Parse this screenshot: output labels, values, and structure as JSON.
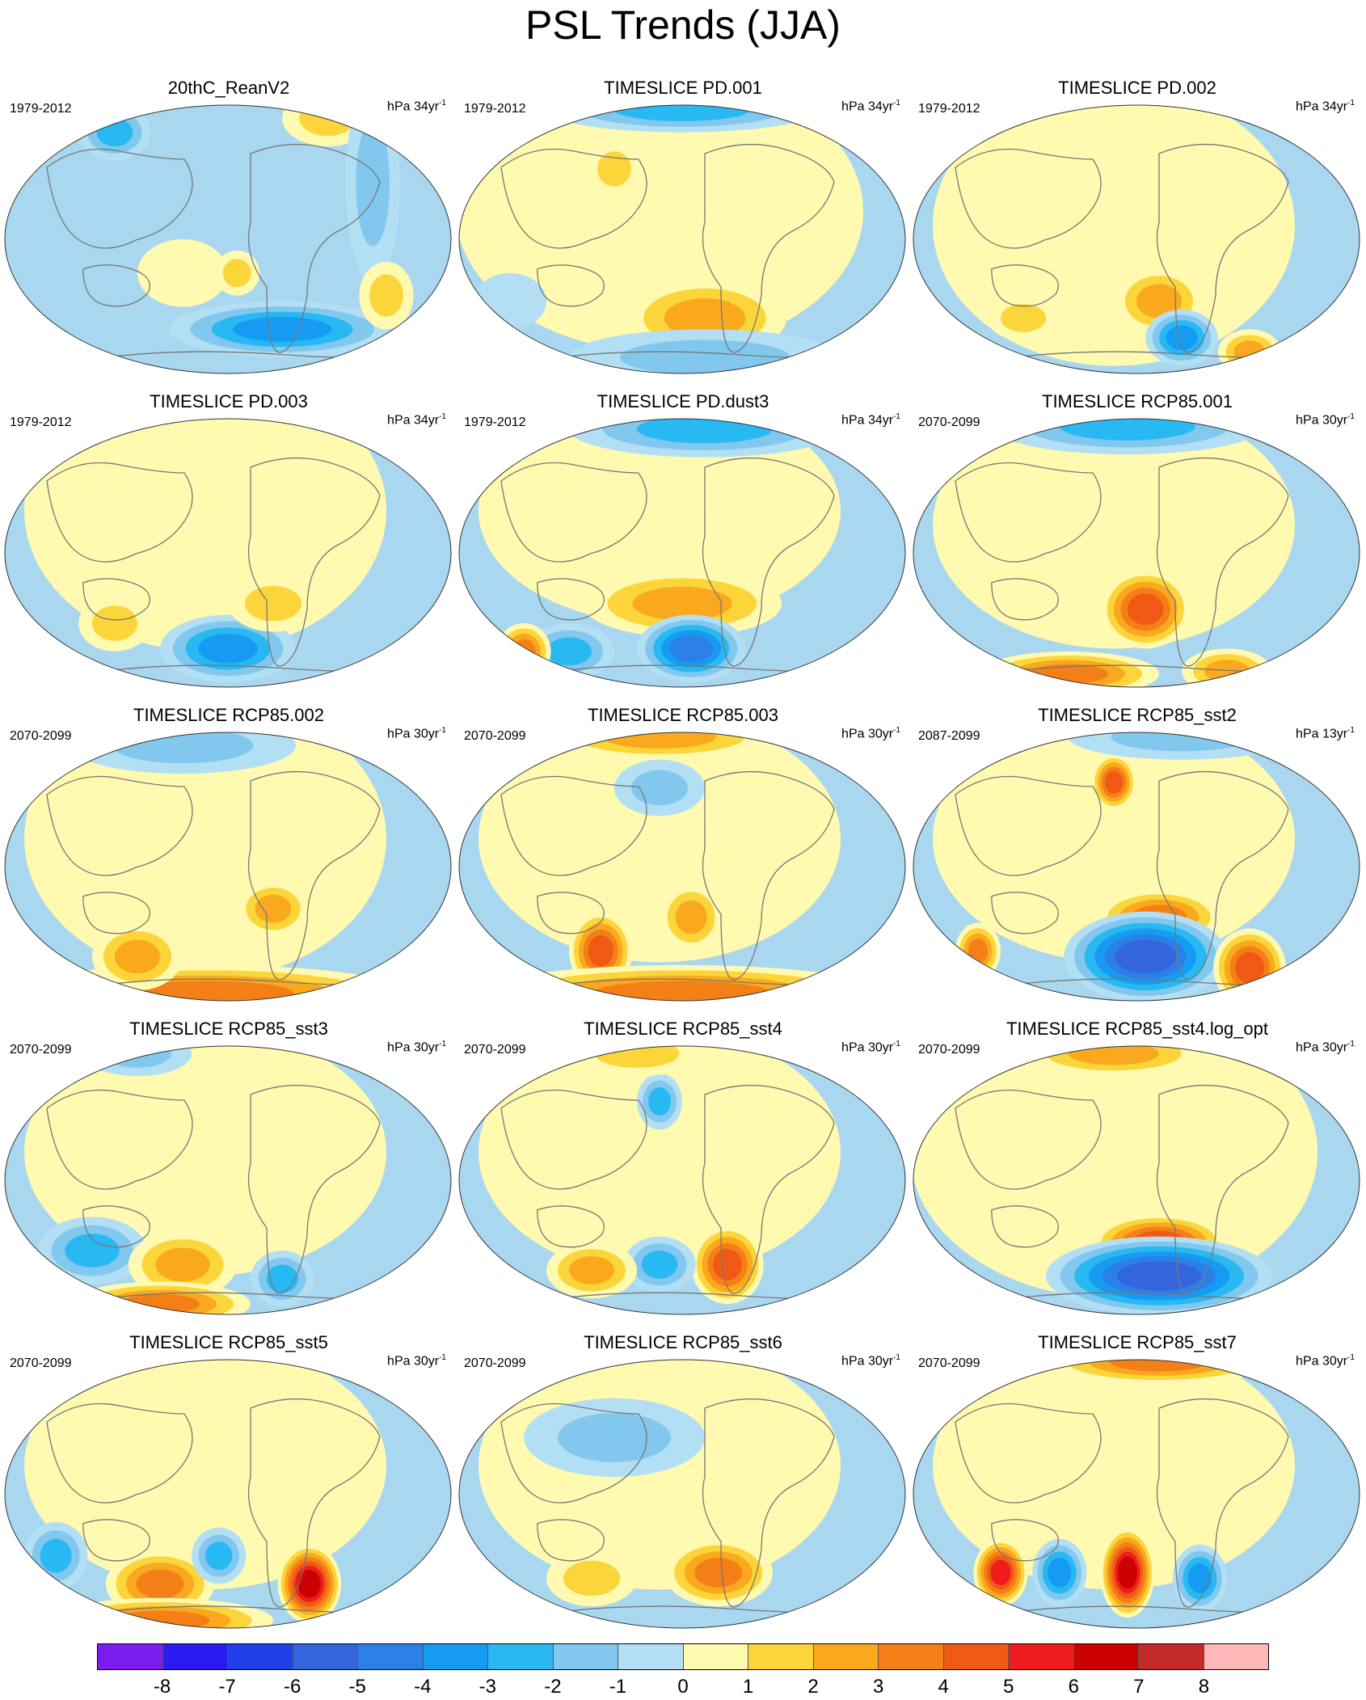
{
  "figure": {
    "title": "PSL Trends (JJA)",
    "units_prefix": "hPa ",
    "units_sup": "-1"
  },
  "palette": {
    "ocean_base": "#a9d7f0",
    "land_line": "#777777",
    "pos": [
      "#fffab0",
      "#fcd53a",
      "#faa81e",
      "#f57f17",
      "#f05a14",
      "#ee1c1c",
      "#cc0000",
      "#c52a2a",
      "#ffb6b6"
    ],
    "neg": [
      "#b3dff4",
      "#82c8ee",
      "#28b8f2",
      "#169bf2",
      "#2b80e8",
      "#3366dd",
      "#1f3fe8",
      "#2a1cf0",
      "#7a1ef0"
    ]
  },
  "panels": [
    {
      "title": "20thC_ReanV2",
      "period": "1979-2012",
      "units": "34yr",
      "pattern": [
        [
          "pos",
          1,
          0.4,
          0.62,
          0.1,
          0.06
        ],
        [
          "neg",
          4,
          0.62,
          0.82,
          0.25,
          0.05
        ],
        [
          "neg",
          3,
          0.25,
          0.12,
          0.08,
          0.05
        ],
        [
          "pos",
          2,
          0.72,
          0.07,
          0.1,
          0.05
        ],
        [
          "neg",
          2,
          0.82,
          0.3,
          0.06,
          0.18
        ],
        [
          "pos",
          2,
          0.85,
          0.7,
          0.06,
          0.06
        ],
        [
          "pos",
          2,
          0.52,
          0.62,
          0.05,
          0.04
        ]
      ]
    },
    {
      "title": "TIMESLICE PD.001",
      "period": "1979-2012",
      "units": "34yr",
      "pattern": [
        [
          "pos",
          1,
          0.45,
          0.4,
          0.45,
          0.25
        ],
        [
          "pos",
          3,
          0.55,
          0.78,
          0.18,
          0.07
        ],
        [
          "neg",
          3,
          0.5,
          0.04,
          0.3,
          0.04
        ],
        [
          "neg",
          2,
          0.55,
          0.92,
          0.3,
          0.05
        ],
        [
          "pos",
          2,
          0.35,
          0.25,
          0.06,
          0.05
        ],
        [
          "neg",
          1,
          0.12,
          0.72,
          0.08,
          0.05
        ]
      ]
    },
    {
      "title": "TIMESLICE PD.002",
      "period": "1979-2012",
      "units": "34yr",
      "pattern": [
        [
          "pos",
          1,
          0.45,
          0.45,
          0.4,
          0.25
        ],
        [
          "pos",
          3,
          0.55,
          0.72,
          0.1,
          0.06
        ],
        [
          "neg",
          4,
          0.6,
          0.85,
          0.08,
          0.05
        ],
        [
          "pos",
          3,
          0.75,
          0.9,
          0.07,
          0.04
        ],
        [
          "pos",
          2,
          0.25,
          0.78,
          0.08,
          0.04
        ]
      ]
    },
    {
      "title": "TIMESLICE PD.003",
      "period": "1979-2012",
      "units": "34yr",
      "pattern": [
        [
          "pos",
          1,
          0.45,
          0.35,
          0.4,
          0.25
        ],
        [
          "neg",
          4,
          0.5,
          0.84,
          0.15,
          0.06
        ],
        [
          "pos",
          2,
          0.6,
          0.68,
          0.1,
          0.05
        ],
        [
          "pos",
          2,
          0.25,
          0.75,
          0.08,
          0.05
        ],
        [
          "pos",
          1,
          0.2,
          0.2,
          0.15,
          0.08
        ]
      ]
    },
    {
      "title": "TIMESLICE PD.dust3",
      "period": "1979-2012",
      "units": "34yr",
      "pattern": [
        [
          "pos",
          1,
          0.45,
          0.35,
          0.4,
          0.2
        ],
        [
          "pos",
          3,
          0.5,
          0.68,
          0.22,
          0.06
        ],
        [
          "neg",
          5,
          0.52,
          0.84,
          0.12,
          0.06
        ],
        [
          "neg",
          3,
          0.25,
          0.85,
          0.1,
          0.05
        ],
        [
          "neg",
          3,
          0.55,
          0.06,
          0.3,
          0.05
        ],
        [
          "pos",
          4,
          0.15,
          0.85,
          0.06,
          0.05
        ]
      ]
    },
    {
      "title": "TIMESLICE RCP85.001",
      "period": "2070-2099",
      "units": "30yr",
      "pattern": [
        [
          "pos",
          1,
          0.45,
          0.4,
          0.4,
          0.22
        ],
        [
          "pos",
          5,
          0.52,
          0.7,
          0.1,
          0.07
        ],
        [
          "neg",
          3,
          0.48,
          0.05,
          0.3,
          0.05
        ],
        [
          "pos",
          4,
          0.35,
          0.93,
          0.2,
          0.04
        ],
        [
          "pos",
          3,
          0.7,
          0.92,
          0.1,
          0.04
        ]
      ]
    },
    {
      "title": "TIMESLICE RCP85.002",
      "period": "2070-2099",
      "units": "30yr",
      "pattern": [
        [
          "pos",
          1,
          0.45,
          0.4,
          0.4,
          0.25
        ],
        [
          "pos",
          3,
          0.6,
          0.65,
          0.08,
          0.05
        ],
        [
          "pos",
          4,
          0.45,
          0.95,
          0.45,
          0.05
        ],
        [
          "neg",
          2,
          0.4,
          0.07,
          0.25,
          0.05
        ],
        [
          "pos",
          3,
          0.3,
          0.82,
          0.1,
          0.06
        ]
      ]
    },
    {
      "title": "TIMESLICE RCP85.003",
      "period": "2070-2099",
      "units": "30yr",
      "pattern": [
        [
          "pos",
          1,
          0.45,
          0.4,
          0.4,
          0.22
        ],
        [
          "pos",
          5,
          0.32,
          0.8,
          0.07,
          0.07
        ],
        [
          "pos",
          3,
          0.52,
          0.68,
          0.07,
          0.06
        ],
        [
          "pos",
          4,
          0.5,
          0.95,
          0.45,
          0.05
        ],
        [
          "pos",
          3,
          0.45,
          0.04,
          0.25,
          0.04
        ],
        [
          "neg",
          2,
          0.45,
          0.22,
          0.1,
          0.05
        ]
      ]
    },
    {
      "title": "TIMESLICE RCP85_sst2",
      "period": "2087-2099",
      "units": "13yr",
      "pattern": [
        [
          "pos",
          1,
          0.45,
          0.4,
          0.4,
          0.22
        ],
        [
          "pos",
          5,
          0.45,
          0.2,
          0.05,
          0.05
        ],
        [
          "pos",
          4,
          0.55,
          0.68,
          0.14,
          0.05
        ],
        [
          "neg",
          6,
          0.52,
          0.82,
          0.18,
          0.08
        ],
        [
          "pos",
          5,
          0.75,
          0.86,
          0.08,
          0.07
        ],
        [
          "pos",
          4,
          0.15,
          0.8,
          0.05,
          0.05
        ],
        [
          "neg",
          2,
          0.6,
          0.04,
          0.25,
          0.04
        ]
      ]
    },
    {
      "title": "TIMESLICE RCP85_sst3",
      "period": "2070-2099",
      "units": "30yr",
      "pattern": [
        [
          "pos",
          1,
          0.45,
          0.4,
          0.4,
          0.22
        ],
        [
          "neg",
          3,
          0.2,
          0.75,
          0.12,
          0.06
        ],
        [
          "pos",
          3,
          0.4,
          0.8,
          0.12,
          0.06
        ],
        [
          "neg",
          3,
          0.62,
          0.85,
          0.07,
          0.05
        ],
        [
          "pos",
          4,
          0.35,
          0.94,
          0.2,
          0.04
        ],
        [
          "neg",
          2,
          0.3,
          0.05,
          0.12,
          0.04
        ]
      ]
    },
    {
      "title": "TIMESLICE RCP85_sst4",
      "period": "2070-2099",
      "units": "30yr",
      "pattern": [
        [
          "pos",
          1,
          0.45,
          0.4,
          0.4,
          0.22
        ],
        [
          "pos",
          5,
          0.6,
          0.8,
          0.08,
          0.07
        ],
        [
          "neg",
          3,
          0.45,
          0.8,
          0.08,
          0.05
        ],
        [
          "pos",
          3,
          0.3,
          0.82,
          0.1,
          0.05
        ],
        [
          "neg",
          3,
          0.45,
          0.22,
          0.05,
          0.05
        ],
        [
          "pos",
          2,
          0.4,
          0.05,
          0.15,
          0.04
        ]
      ]
    },
    {
      "title": "TIMESLICE RCP85_sst4.log_opt",
      "period": "2070-2099",
      "units": "30yr",
      "pattern": [
        [
          "pos",
          1,
          0.45,
          0.4,
          0.45,
          0.26
        ],
        [
          "pos",
          5,
          0.55,
          0.72,
          0.15,
          0.05
        ],
        [
          "neg",
          6,
          0.55,
          0.84,
          0.25,
          0.07
        ],
        [
          "pos",
          3,
          0.45,
          0.05,
          0.2,
          0.04
        ]
      ]
    },
    {
      "title": "TIMESLICE RCP85_sst5",
      "period": "2070-2099",
      "units": "30yr",
      "pattern": [
        [
          "pos",
          1,
          0.45,
          0.4,
          0.4,
          0.22
        ],
        [
          "pos",
          7,
          0.68,
          0.82,
          0.07,
          0.07
        ],
        [
          "pos",
          4,
          0.35,
          0.82,
          0.12,
          0.06
        ],
        [
          "pos",
          4,
          0.35,
          0.95,
          0.25,
          0.04
        ],
        [
          "neg",
          3,
          0.12,
          0.72,
          0.07,
          0.06
        ],
        [
          "neg",
          3,
          0.48,
          0.72,
          0.06,
          0.05
        ]
      ]
    },
    {
      "title": "TIMESLICE RCP85_sst6",
      "period": "2070-2099",
      "units": "30yr",
      "pattern": [
        [
          "pos",
          1,
          0.45,
          0.4,
          0.4,
          0.22
        ],
        [
          "pos",
          4,
          0.58,
          0.78,
          0.12,
          0.06
        ],
        [
          "pos",
          2,
          0.3,
          0.8,
          0.1,
          0.05
        ],
        [
          "neg",
          2,
          0.35,
          0.3,
          0.2,
          0.07
        ]
      ]
    },
    {
      "title": "TIMESLICE RCP85_sst7",
      "period": "2070-2099",
      "units": "30yr",
      "pattern": [
        [
          "pos",
          1,
          0.45,
          0.4,
          0.4,
          0.22
        ],
        [
          "pos",
          7,
          0.48,
          0.78,
          0.06,
          0.08
        ],
        [
          "pos",
          6,
          0.2,
          0.78,
          0.06,
          0.06
        ],
        [
          "neg",
          4,
          0.33,
          0.78,
          0.06,
          0.06
        ],
        [
          "neg",
          4,
          0.64,
          0.8,
          0.06,
          0.06
        ],
        [
          "pos",
          4,
          0.55,
          0.03,
          0.25,
          0.04
        ]
      ]
    }
  ],
  "colorbar": {
    "labels": [
      "-8",
      "-7",
      "-6",
      "-5",
      "-4",
      "-3",
      "-2",
      "-1",
      "0",
      "1",
      "2",
      "3",
      "4",
      "5",
      "6",
      "7",
      "8"
    ],
    "colors": [
      "#7a1ef0",
      "#2a1cf0",
      "#1f3fe8",
      "#3366dd",
      "#2b80e8",
      "#169bf2",
      "#28b8f2",
      "#82c8ee",
      "#b3dff4",
      "#fffab0",
      "#fcd53a",
      "#faa81e",
      "#f57f17",
      "#f05a14",
      "#ee1c1c",
      "#cc0000",
      "#c52a2a",
      "#ffb6b6"
    ]
  }
}
